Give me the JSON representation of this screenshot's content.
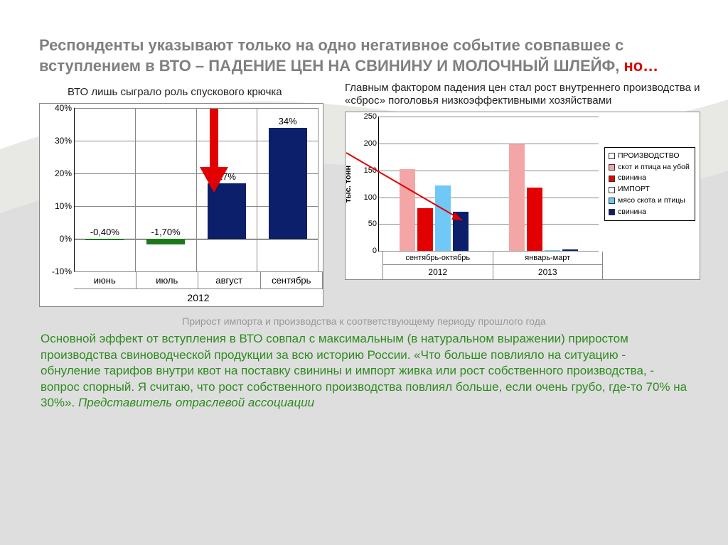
{
  "colors": {
    "page_bg": "#dedede",
    "swoosh_light": "#e8e8e4",
    "swoosh_white": "#ffffff",
    "title_gray": "#808080",
    "title_red": "#d80000",
    "caption_gray": "#999999",
    "quote_green": "#2e8b1f",
    "annot_black": "#222222",
    "chart_border": "#888888",
    "grid": "#888888",
    "axis": "#000000",
    "arrow_red": "#e30000"
  },
  "title": {
    "line1_gray": "Респонденты указывают только на одно негативное событие совпавшее с вступлением в ВТО – ",
    "line1_emph": "ПАДЕНИЕ ЦЕН НА СВИНИНУ И МОЛОЧНЫЙ ШЛЕЙФ",
    "suffix_gray": ", ",
    "suffix_red": "но…"
  },
  "left_annot": "ВТО лишь сыграло роль спускового крючка",
  "right_annot": "Главным фактором падения цен стал рост внутреннего производства и «сброс» поголовья низкоэффективными хозяйствами",
  "chart1": {
    "type": "bar",
    "ymin": -10,
    "ymax": 40,
    "ytick_step": 10,
    "ysuffix": "%",
    "background": "#ffffff",
    "bars": [
      {
        "label": "июнь",
        "value": -0.4,
        "display": "-0,40%",
        "color": "#1a7a1a"
      },
      {
        "label": "июль",
        "value": -1.7,
        "display": "-1,70%",
        "color": "#1a7a1a"
      },
      {
        "label": "август",
        "value": 17,
        "display": "17%",
        "color": "#0b1f6b"
      },
      {
        "label": "сентябрь",
        "value": 34,
        "display": "34%",
        "color": "#0b1f6b"
      }
    ],
    "year_label": "2012"
  },
  "chart2": {
    "type": "grouped_bar",
    "ymin": 0,
    "ymax": 250,
    "ytick_step": 50,
    "background": "#ffffff",
    "ylabel": "тыс. тонн",
    "series": [
      {
        "key": "prod_livestock",
        "color": "#f4a6a6"
      },
      {
        "key": "prod_pork",
        "color": "#e30000"
      },
      {
        "key": "imp_meat",
        "color": "#6fc8f5"
      },
      {
        "key": "imp_pork",
        "color": "#0b1f6b"
      }
    ],
    "groups": [
      {
        "label": "сентябрь-октябрь",
        "year": "2012",
        "values": {
          "prod_livestock": 153,
          "prod_pork": 80,
          "imp_meat": 122,
          "imp_pork": 73
        }
      },
      {
        "label": "январь-март",
        "year": "2013",
        "values": {
          "prod_livestock": 199,
          "prod_pork": 118,
          "imp_meat": 2,
          "imp_pork": 3
        }
      }
    ],
    "legend": {
      "h1": "ПРОИЗВОДСТВО",
      "i1": "скот и птица на убой",
      "i2": "свинина",
      "h2": "ИМПОРТ",
      "i3": "мясо скота и птицы",
      "i4": "свинина"
    }
  },
  "caption": "Прирост импорта и производства к соответствующему периоду прошлого года",
  "quote": {
    "body": "Основной эффект от вступления в ВТО совпал с максимальным (в натуральном выражении) приростом производства свиноводческой продукции за всю историю России. «Что больше повлияло на ситуацию -  обнуление тарифов внутри квот на поставку свинины и импорт живка или рост собственного производства, - вопрос спорный. Я считаю, что рост собственного производства повлиял больше, если очень грубо, где-то 70% на 30%». ",
    "attribution": "Представитель отраслевой ассоциации"
  }
}
